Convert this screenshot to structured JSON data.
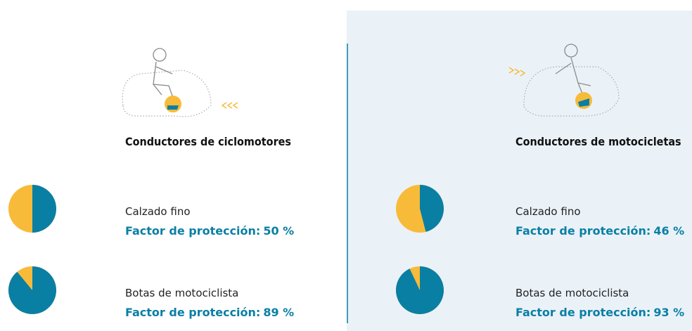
{
  "colors": {
    "protected": "#0a7fa4",
    "unprotected": "#f8bb39"
  },
  "panels": [
    {
      "title": "Conductores de ciclomotores",
      "items": [
        {
          "label": "Calzado fino",
          "factor_text": "Factor de protección:",
          "value": 50,
          "value_label": "50 %"
        },
        {
          "label": "Botas de motociclista",
          "factor_text": "Factor de protección:",
          "value": 89,
          "value_label": "89 %"
        }
      ]
    },
    {
      "title": "Conductores de motocicletas",
      "items": [
        {
          "label": "Calzado fino",
          "factor_text": "Factor de protección:",
          "value": 46,
          "value_label": "46 %"
        },
        {
          "label": "Botas de motociclista",
          "factor_text": "Factor de protección:",
          "value": 93,
          "value_label": "93 %"
        }
      ]
    }
  ]
}
